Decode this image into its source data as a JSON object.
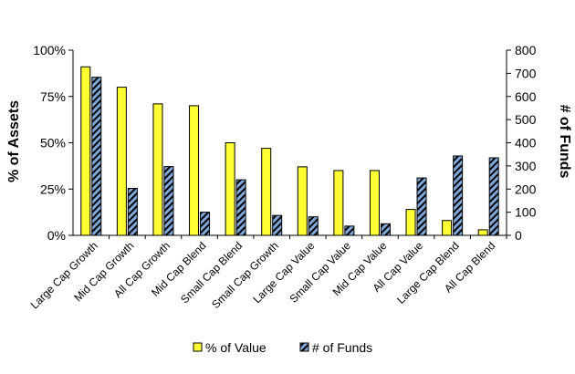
{
  "chart_data": {
    "type": "bar",
    "categories": [
      "Large Cap Growth",
      "Mid Cap Growth",
      "All Cap Growth",
      "Mid Cap Blend",
      "Small Cap Blend",
      "Small Cap Growth",
      "Large Cap Value",
      "Small Cap Value",
      "Mid Cap Value",
      "All Cap Value",
      "Large Cap Blend",
      "All Cap Blend"
    ],
    "series": [
      {
        "name": "% of Value",
        "axis": "left",
        "color": "#FFFF33",
        "values": [
          91,
          80,
          71,
          70,
          50,
          47,
          37,
          35,
          35,
          14,
          8,
          3
        ]
      },
      {
        "name": "# of Funds",
        "axis": "right",
        "color": "#7FA7D9",
        "values": [
          683,
          203,
          297,
          100,
          240,
          86,
          80,
          40,
          50,
          248,
          343,
          335
        ]
      }
    ],
    "ylabel": "% of Assets",
    "y2label": "# of Funds",
    "ylim": [
      0,
      100
    ],
    "y2lim": [
      0,
      800
    ],
    "yticks": [
      "0%",
      "25%",
      "50%",
      "75%",
      "100%"
    ],
    "y2ticks": [
      "0",
      "100",
      "200",
      "300",
      "400",
      "500",
      "600",
      "700",
      "800"
    ],
    "grid": false,
    "legend_position": "bottom"
  }
}
